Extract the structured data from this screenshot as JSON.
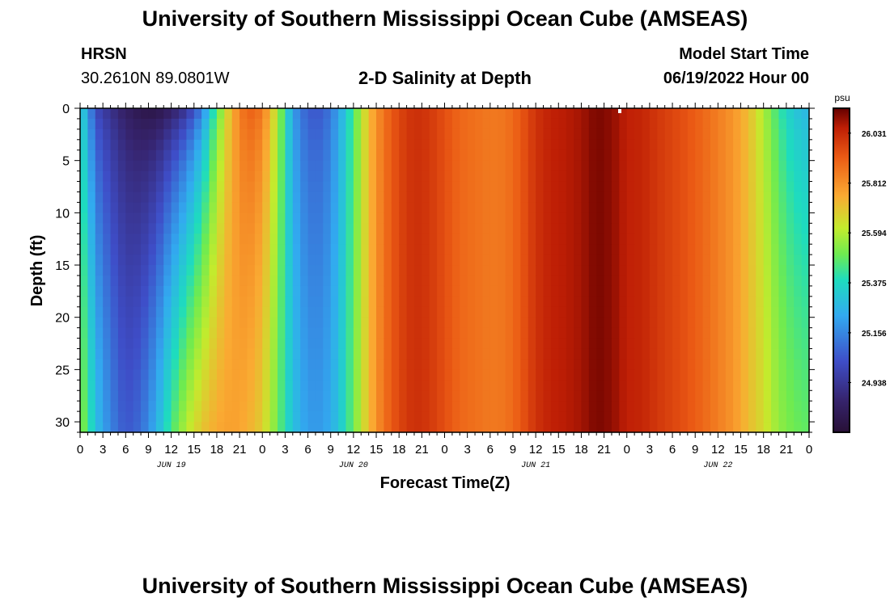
{
  "page": {
    "title_top": "University of Southern Mississippi Ocean Cube (AMSEAS)",
    "title_bottom": "University of Southern Mississippi Ocean Cube (AMSEAS)",
    "station": "HRSN",
    "coords": "30.2610N  89.0801W",
    "subtitle": "2-D Salinity at Depth",
    "model_start_label": "Model Start Time",
    "model_start_value": "06/19/2022 Hour 00"
  },
  "chart_data": {
    "type": "heatmap",
    "title": "2-D Salinity at Depth",
    "xlabel": "Forecast Time(Z)",
    "ylabel": "Depth (ft)",
    "x_range_hours": [
      0,
      96
    ],
    "ylim": [
      0,
      31
    ],
    "y_ticks": [
      0,
      5,
      10,
      15,
      20,
      25,
      30
    ],
    "x_ticks_hours": [
      0,
      3,
      6,
      9,
      12,
      15,
      18,
      21,
      24,
      27,
      30,
      33,
      36,
      39,
      42,
      45,
      48,
      51,
      54,
      57,
      60,
      63,
      66,
      69,
      72,
      75,
      78,
      81,
      84,
      87,
      90,
      93,
      96
    ],
    "x_tick_labels": [
      "0",
      "3",
      "6",
      "9",
      "12",
      "15",
      "18",
      "21",
      "0",
      "3",
      "6",
      "9",
      "12",
      "15",
      "18",
      "21",
      "0",
      "3",
      "6",
      "9",
      "12",
      "15",
      "18",
      "21",
      "0",
      "3",
      "6",
      "9",
      "12",
      "15",
      "18",
      "21",
      "0"
    ],
    "date_labels": [
      {
        "label": "JUN 19",
        "hour": 12
      },
      {
        "label": "JUN 20",
        "hour": 36
      },
      {
        "label": "JUN 21",
        "hour": 60
      },
      {
        "label": "JUN 22",
        "hour": 84
      }
    ],
    "colorbar": {
      "unit": "psu",
      "min": 24.72,
      "max": 26.14,
      "tick_values": [
        26.031,
        25.812,
        25.594,
        25.375,
        25.156,
        24.938
      ],
      "tick_labels": [
        "26.031",
        "25.812",
        "25.594",
        "25.375",
        "25.156",
        "24.938"
      ]
    },
    "salinity_surface": {
      "hours": [
        0,
        1,
        2,
        4,
        6,
        8,
        10,
        12,
        14,
        16,
        18,
        20,
        22,
        24,
        26,
        28,
        30,
        32,
        34,
        36,
        38,
        40,
        42,
        44,
        46,
        48,
        50,
        52,
        54,
        56,
        58,
        60,
        62,
        64,
        66,
        68,
        70,
        72,
        74,
        76,
        78,
        80,
        82,
        84,
        86,
        88,
        90,
        92,
        94,
        96
      ],
      "values": [
        25.35,
        25.2,
        25.0,
        24.9,
        24.82,
        24.76,
        24.74,
        24.8,
        24.9,
        25.1,
        25.45,
        25.75,
        25.93,
        25.88,
        25.6,
        25.2,
        25.05,
        25.05,
        25.2,
        25.45,
        25.72,
        25.88,
        25.97,
        26.02,
        26.0,
        25.95,
        25.9,
        25.88,
        25.86,
        25.87,
        25.93,
        26.01,
        26.05,
        26.06,
        26.08,
        26.12,
        26.1,
        26.05,
        26.04,
        26.0,
        25.97,
        25.94,
        25.9,
        25.85,
        25.8,
        25.72,
        25.58,
        25.42,
        25.3,
        25.25
      ]
    },
    "salinity_bottom": {
      "hours": [
        0,
        1,
        2,
        4,
        6,
        8,
        10,
        12,
        14,
        16,
        18,
        20,
        22,
        24,
        26,
        28,
        30,
        32,
        34,
        36,
        38,
        40,
        42,
        44,
        46,
        48,
        50,
        52,
        54,
        56,
        58,
        60,
        62,
        64,
        66,
        68,
        70,
        72,
        74,
        76,
        78,
        80,
        82,
        84,
        86,
        88,
        90,
        92,
        94,
        96
      ],
      "values": [
        25.55,
        25.45,
        25.3,
        25.15,
        25.05,
        25.1,
        25.25,
        25.45,
        25.6,
        25.7,
        25.76,
        25.78,
        25.75,
        25.68,
        25.5,
        25.3,
        25.2,
        25.2,
        25.3,
        25.5,
        25.72,
        25.88,
        25.97,
        26.02,
        26.0,
        25.95,
        25.9,
        25.88,
        25.86,
        25.87,
        25.93,
        26.01,
        26.05,
        26.06,
        26.08,
        26.12,
        26.1,
        26.05,
        26.04,
        26.0,
        25.97,
        25.94,
        25.9,
        25.85,
        25.8,
        25.72,
        25.65,
        25.55,
        25.5,
        25.48
      ]
    }
  }
}
